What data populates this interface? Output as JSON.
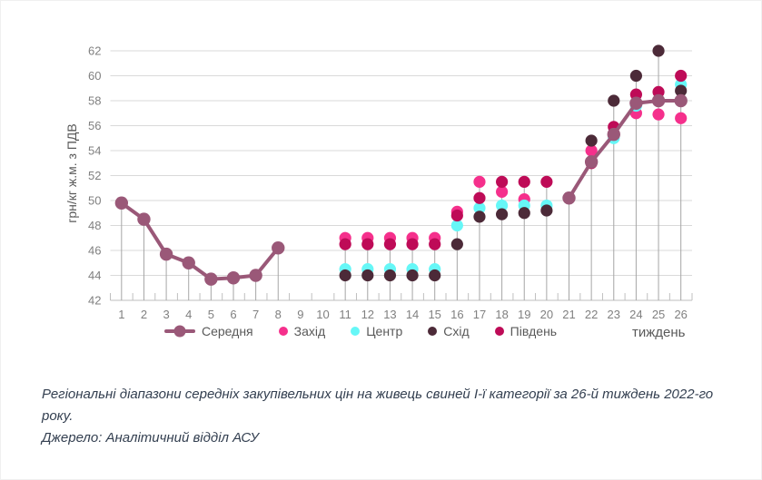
{
  "chart_data": {
    "type": "line",
    "title": "",
    "xlabel": "тиждень",
    "ylabel": "грн/кг ж.м. з ПДВ",
    "x": [
      1,
      2,
      3,
      4,
      5,
      6,
      7,
      8,
      9,
      10,
      11,
      12,
      13,
      14,
      15,
      16,
      17,
      18,
      19,
      20,
      21,
      22,
      23,
      24,
      25,
      26
    ],
    "ylim": [
      42,
      62
    ],
    "ytick_step": 2,
    "grid": true,
    "drop_lines": true,
    "legend_position": "bottom",
    "series": [
      {
        "name": "Середня",
        "key": "serednia",
        "style": "line-markers",
        "color": "#9A5878",
        "values": [
          49.8,
          48.5,
          45.7,
          45,
          43.7,
          43.8,
          44,
          46.2,
          null,
          null,
          null,
          null,
          null,
          null,
          null,
          null,
          null,
          null,
          null,
          null,
          50.2,
          53.1,
          55.3,
          57.8,
          58,
          58
        ]
      },
      {
        "name": "Захід",
        "key": "zakhid",
        "style": "markers",
        "color": "#F5308C",
        "values": [
          null,
          null,
          null,
          null,
          null,
          null,
          null,
          null,
          null,
          null,
          47,
          47,
          47,
          47,
          47,
          49.1,
          51.5,
          50.7,
          50.1,
          null,
          null,
          54,
          55.4,
          57,
          56.9,
          56.6
        ]
      },
      {
        "name": "Центр",
        "key": "tsentr",
        "style": "markers",
        "color": "#66F7F7",
        "values": [
          null,
          null,
          null,
          null,
          null,
          null,
          null,
          null,
          null,
          null,
          44.5,
          44.5,
          44.5,
          44.5,
          44.5,
          48,
          49.4,
          49.6,
          49.6,
          49.6,
          null,
          null,
          55,
          57.6,
          null,
          59.3
        ]
      },
      {
        "name": "Схід",
        "key": "skhid",
        "style": "markers",
        "color": "#4C2A38",
        "values": [
          null,
          null,
          null,
          null,
          null,
          null,
          null,
          null,
          null,
          null,
          44,
          44,
          44,
          44,
          44,
          46.5,
          48.7,
          48.9,
          49,
          49.2,
          null,
          54.8,
          58,
          60,
          62,
          58.8
        ]
      },
      {
        "name": "Південь",
        "key": "pivden",
        "style": "markers",
        "color": "#BE0B57",
        "values": [
          null,
          null,
          null,
          null,
          null,
          null,
          null,
          null,
          null,
          null,
          46.5,
          46.5,
          46.5,
          46.5,
          46.5,
          48.8,
          50.2,
          51.5,
          51.5,
          51.5,
          null,
          53,
          55.9,
          58.5,
          58.7,
          60
        ]
      }
    ]
  },
  "caption": {
    "text": "Регіональні діапазони середніх закупівельних цін на живець свиней І-ї категорії за 26-й тиждень 2022-го року.",
    "source": "Джерело: Аналітичний відділ АСУ"
  },
  "colors": {
    "gridline": "#D9D9D9",
    "axis": "#BFBFBF",
    "drop_line": "#A6A6A6",
    "tick_text": "#808080",
    "legend_text": "#595959",
    "caption_text": "#333F50"
  }
}
